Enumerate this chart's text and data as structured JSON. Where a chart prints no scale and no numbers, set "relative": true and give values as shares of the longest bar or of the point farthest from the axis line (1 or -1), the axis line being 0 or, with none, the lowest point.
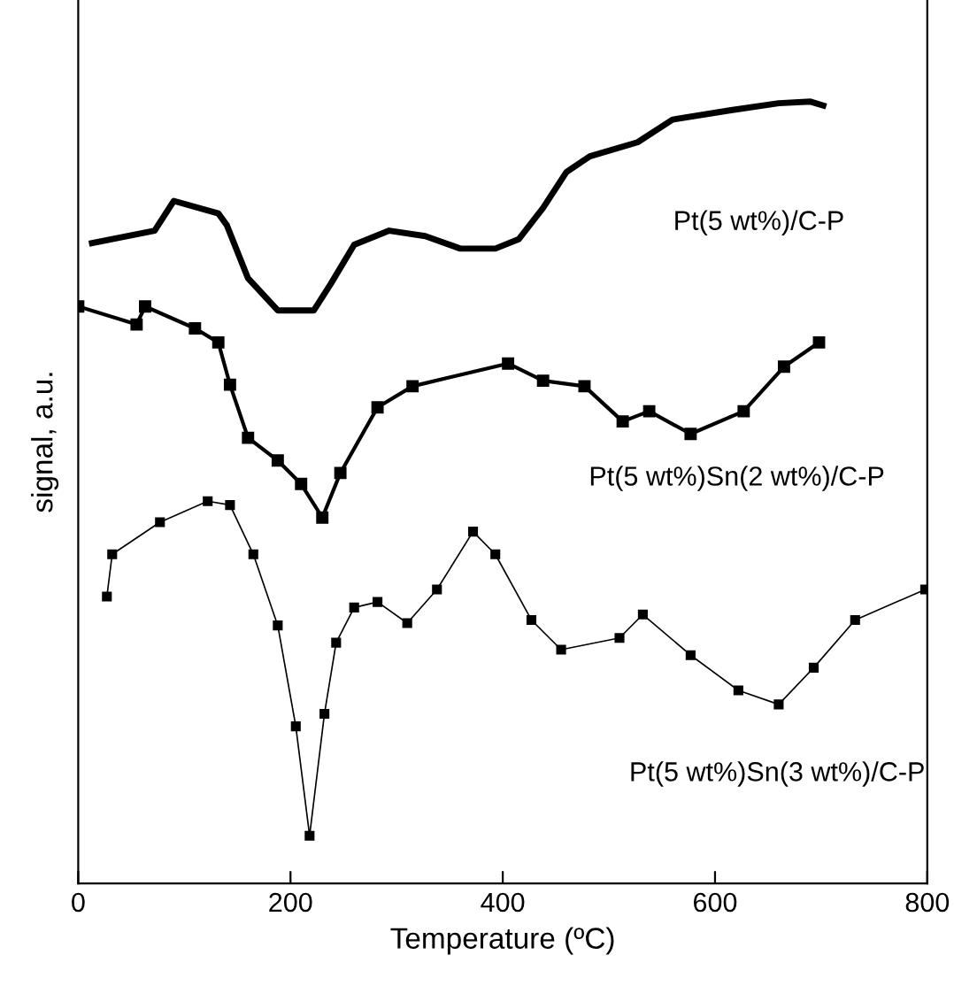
{
  "chart_data": {
    "type": "line",
    "relative": true,
    "xlabel": "Temperature (ºC)",
    "ylabel": "signal, a.u.",
    "xlim": [
      0,
      800
    ],
    "xticks": [
      0,
      200,
      400,
      600,
      800
    ],
    "grid": false,
    "series": [
      {
        "name": "Pt(5 wt%)/C-P",
        "color": "#000000",
        "marker": "none",
        "x": [
          13,
          72,
          90,
          132,
          140,
          160,
          188,
          222,
          238,
          260,
          293,
          327,
          360,
          393,
          415,
          438,
          460,
          482,
          527,
          560,
          615,
          660,
          690,
          702
        ],
        "values": [
          0.819,
          0.835,
          0.873,
          0.857,
          0.842,
          0.774,
          0.733,
          0.733,
          0.767,
          0.817,
          0.835,
          0.828,
          0.812,
          0.812,
          0.824,
          0.864,
          0.91,
          0.93,
          0.948,
          0.977,
          0.989,
          0.998,
          1.0,
          0.995
        ]
      },
      {
        "name": "Pt(5 wt%)Sn(2 wt%)/C-P",
        "color": "#000000",
        "marker": "square",
        "x": [
          0,
          55,
          63,
          110,
          132,
          143,
          160,
          188,
          210,
          230,
          247,
          282,
          315,
          405,
          438,
          477,
          513,
          538,
          577,
          627,
          665,
          698
        ],
        "values": [
          0.738,
          0.715,
          0.738,
          0.71,
          0.692,
          0.638,
          0.57,
          0.541,
          0.511,
          0.468,
          0.525,
          0.609,
          0.636,
          0.665,
          0.643,
          0.636,
          0.591,
          0.604,
          0.575,
          0.604,
          0.661,
          0.692
        ]
      },
      {
        "name": "Pt(5 wt%)Sn(3 wt%)/C-P",
        "color": "#000000",
        "marker": "square",
        "x": [
          27,
          32,
          77,
          122,
          143,
          165,
          188,
          205,
          218,
          232,
          243,
          260,
          282,
          310,
          338,
          372,
          393,
          427,
          455,
          510,
          532,
          577,
          622,
          660,
          693,
          732,
          798
        ],
        "values": [
          0.367,
          0.421,
          0.462,
          0.489,
          0.484,
          0.421,
          0.33,
          0.201,
          0.061,
          0.217,
          0.308,
          0.353,
          0.36,
          0.333,
          0.376,
          0.45,
          0.421,
          0.337,
          0.299,
          0.314,
          0.344,
          0.292,
          0.247,
          0.229,
          0.276,
          0.337,
          0.376
        ]
      }
    ]
  }
}
